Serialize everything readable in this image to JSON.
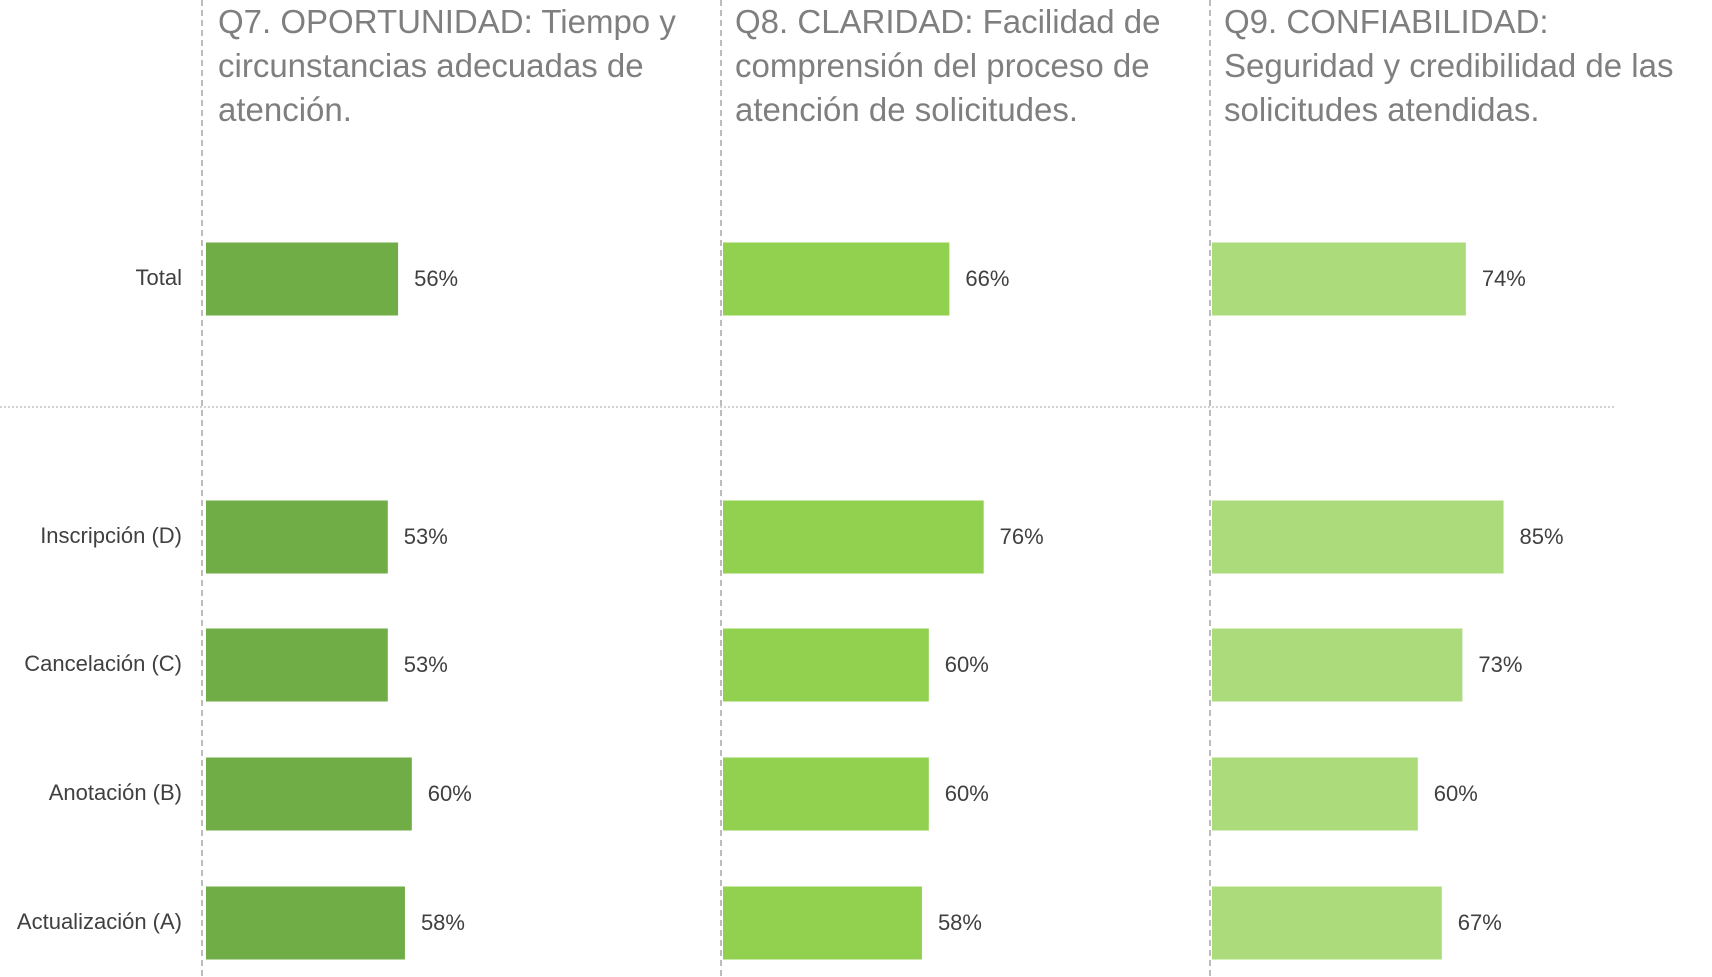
{
  "chart_data": {
    "type": "bar",
    "orientation": "horizontal",
    "categories": [
      "Total",
      "Inscripción (D)",
      "Cancelación (C)",
      "Anotación (B)",
      "Actualización (A)"
    ],
    "xlim": [
      0,
      100
    ],
    "series": [
      {
        "name": "Q7. OPORTUNIDAD: Tiempo y circunstancias adecuadas de atención.",
        "color": "#70ad47",
        "values": [
          56,
          53,
          53,
          60,
          58
        ],
        "value_labels": [
          "56%",
          "53%",
          "53%",
          "60%",
          "58%"
        ]
      },
      {
        "name": "Q8. CLARIDAD: Facilidad de comprensión del proceso de atención de solicitudes.",
        "color": "#92d050",
        "values": [
          66,
          76,
          60,
          60,
          58
        ],
        "value_labels": [
          "66%",
          "76%",
          "60%",
          "60%",
          "58%"
        ]
      },
      {
        "name": "Q9. CONFIABILIDAD: Seguridad y credibilidad de las solicitudes atendidas.",
        "color": "#acdb7c",
        "values": [
          74,
          85,
          73,
          60,
          67
        ],
        "value_labels": [
          "74%",
          "85%",
          "73%",
          "60%",
          "67%"
        ]
      }
    ]
  }
}
